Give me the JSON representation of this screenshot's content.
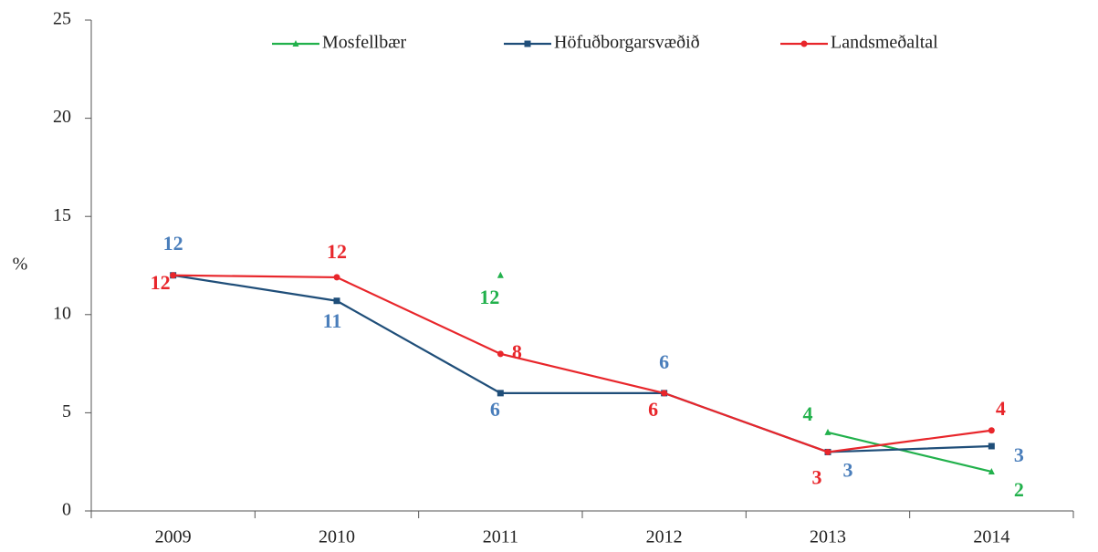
{
  "chart_data": {
    "type": "line",
    "y_label": "%",
    "categories": [
      "2009",
      "2010",
      "2011",
      "2012",
      "2013",
      "2014"
    ],
    "series": [
      {
        "name": "Mosfellbær",
        "color": "#22b14c",
        "label_color": "#22b14c",
        "marker": "triangle",
        "values": [
          null,
          null,
          12,
          null,
          4,
          2
        ],
        "value_labels": [
          null,
          null,
          "12",
          null,
          "4",
          "2"
        ]
      },
      {
        "name": "Höfuðborgarsvæðið",
        "color": "#1f4e79",
        "label_color": "#4a7ebb",
        "marker": "square",
        "values": [
          12,
          10.7,
          6,
          6,
          3,
          3.3
        ],
        "value_labels": [
          "12",
          "11",
          "6",
          "6",
          "3",
          "3"
        ]
      },
      {
        "name": "Landsmeðaltal",
        "color": "#e8262b",
        "label_color": "#e8262b",
        "marker": "circle",
        "values": [
          12,
          11.9,
          8,
          6,
          3,
          4.1
        ],
        "value_labels": [
          "12",
          "12",
          "8",
          "6",
          "3",
          "4"
        ]
      }
    ],
    "ylim": [
      0,
      25
    ],
    "yticks": [
      0,
      5,
      10,
      15,
      20,
      25
    ],
    "grid": false,
    "legend": "top"
  }
}
